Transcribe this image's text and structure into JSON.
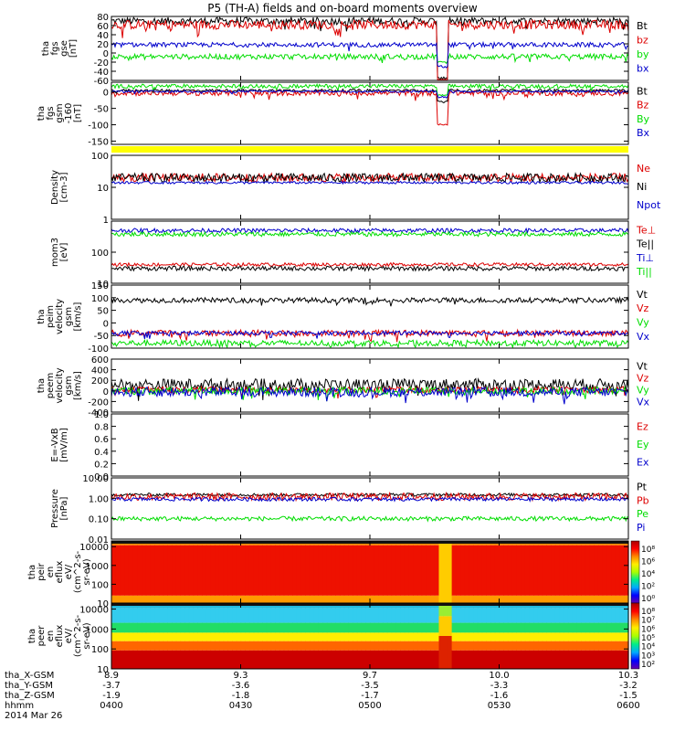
{
  "title": "P5 (TH-A) fields and on-board moments overview",
  "colors": {
    "black": "#000000",
    "red": "#dd0000",
    "blue": "#0000cc",
    "green": "#00dd00",
    "yellow": "#ffff00"
  },
  "chart_data": [
    {
      "type": "line",
      "panel": "fgs",
      "ylabel": [
        "tha",
        "fgs",
        "gse",
        "[nT]"
      ],
      "ylim": [
        -60,
        80
      ],
      "yticks": [
        "80",
        "60",
        "40",
        "20",
        "0",
        "-20",
        "-40",
        "-60"
      ],
      "ytick_values": [
        80,
        60,
        40,
        20,
        0,
        -20,
        -40,
        -60
      ],
      "series": [
        {
          "name": "Bt",
          "color": "#000000",
          "base": 70,
          "amp": 8,
          "dip": -55
        },
        {
          "name": "bz",
          "color": "#dd0000",
          "base": 62,
          "amp": 10,
          "dip": -80
        },
        {
          "name": "by",
          "color": "#00dd00",
          "base": -8,
          "amp": 6,
          "dip": -20
        },
        {
          "name": "bx",
          "color": "#0000cc",
          "base": 18,
          "amp": 5,
          "dip": -30
        }
      ]
    },
    {
      "type": "line",
      "panel": "fgs-gsm",
      "ylabel": [
        "tha",
        "fgs",
        "gsm",
        "-160",
        "[nT]"
      ],
      "ylim": [
        -160,
        30
      ],
      "yticks": [
        "0",
        "-50",
        "-100",
        "-150"
      ],
      "ytick_values": [
        0,
        -50,
        -100,
        -150
      ],
      "series": [
        {
          "name": "Bt",
          "color": "#000000",
          "base": 5,
          "amp": 4,
          "dip": -30
        },
        {
          "name": "Bz",
          "color": "#dd0000",
          "base": -3,
          "amp": 8,
          "dip": -100
        },
        {
          "name": "By",
          "color": "#00dd00",
          "base": 18,
          "amp": 6,
          "dip": -10
        },
        {
          "name": "Bx",
          "color": "#0000cc",
          "base": 2,
          "amp": 3,
          "dip": -15
        }
      ]
    },
    {
      "type": "line",
      "panel": "density",
      "ylabel": [
        "Density",
        "[cm-3]"
      ],
      "scale": "log",
      "ylim": [
        1,
        100
      ],
      "yticks": [
        "100",
        "10",
        "1"
      ],
      "ytick_values": [
        100,
        10,
        1
      ],
      "series": [
        {
          "name": "Ne",
          "color": "#dd0000",
          "base": 20,
          "amp": 5
        },
        {
          "name": "Ni",
          "color": "#000000",
          "base": 20,
          "amp": 5
        },
        {
          "name": "Npot",
          "color": "#0000cc",
          "base": 14,
          "amp": 1
        }
      ]
    },
    {
      "type": "line",
      "panel": "temperature",
      "ylabel": [
        "mom3",
        "[eV]"
      ],
      "scale": "log",
      "ylim": [
        10,
        1000
      ],
      "yticks": [
        "100",
        "10"
      ],
      "ytick_values": [
        100,
        10
      ],
      "series": [
        {
          "name": "Te⊥",
          "color": "#dd0000",
          "base": 40,
          "amp": 4
        },
        {
          "name": "Te||",
          "color": "#000000",
          "base": 30,
          "amp": 4
        },
        {
          "name": "Ti⊥",
          "color": "#0000cc",
          "base": 500,
          "amp": 60
        },
        {
          "name": "Ti||",
          "color": "#00dd00",
          "base": 380,
          "amp": 50
        }
      ]
    },
    {
      "type": "line",
      "panel": "peim-velocity",
      "ylabel": [
        "tha",
        "peim",
        "velocity",
        "gsm",
        "[km/s]"
      ],
      "ylim": [
        -100,
        150
      ],
      "yticks": [
        "150",
        "100",
        "50",
        "0",
        "-50",
        "-100"
      ],
      "ytick_values": [
        150,
        100,
        50,
        0,
        -50,
        -100
      ],
      "series": [
        {
          "name": "Vt",
          "color": "#000000",
          "base": 90,
          "amp": 10
        },
        {
          "name": "Vz",
          "color": "#dd0000",
          "base": -40,
          "amp": 12
        },
        {
          "name": "Vy",
          "color": "#00dd00",
          "base": -80,
          "amp": 12
        },
        {
          "name": "Vx",
          "color": "#0000cc",
          "base": -40,
          "amp": 8
        }
      ]
    },
    {
      "type": "line",
      "panel": "peem-velocity",
      "ylabel": [
        "tha",
        "peem",
        "velocity",
        "gsm",
        "[km/s]"
      ],
      "ylim": [
        -400,
        600
      ],
      "yticks": [
        "600",
        "400",
        "200",
        "0",
        "-200",
        "-400"
      ],
      "ytick_values": [
        600,
        400,
        200,
        0,
        -200,
        -400
      ],
      "series": [
        {
          "name": "Vt",
          "color": "#000000",
          "base": 120,
          "amp": 110
        },
        {
          "name": "Vz",
          "color": "#dd0000",
          "base": 20,
          "amp": 60
        },
        {
          "name": "Vy",
          "color": "#00dd00",
          "base": 0,
          "amp": 70
        },
        {
          "name": "Vx",
          "color": "#0000cc",
          "base": -20,
          "amp": 90
        }
      ]
    },
    {
      "type": "line",
      "panel": "efield",
      "ylabel": [
        "E=-VxB",
        "[mV/m]"
      ],
      "ylim": [
        0,
        1
      ],
      "yticks": [
        "1.0",
        "0.8",
        "0.6",
        "0.4",
        "0.2",
        "0.0"
      ],
      "ytick_values": [
        1,
        0.8,
        0.6,
        0.4,
        0.2,
        0
      ],
      "series": [
        {
          "name": "Ez",
          "color": "#dd0000"
        },
        {
          "name": "Ey",
          "color": "#00dd00"
        },
        {
          "name": "Ex",
          "color": "#0000cc"
        }
      ]
    },
    {
      "type": "line",
      "panel": "pressure",
      "ylabel": [
        "Pressure",
        "[nPa]"
      ],
      "scale": "log",
      "ylim": [
        0.01,
        10
      ],
      "yticks": [
        "10.00",
        "1.00",
        "0.10",
        "0.01"
      ],
      "ytick_values": [
        10,
        1,
        0.1,
        0.01
      ],
      "series": [
        {
          "name": "Pt",
          "color": "#000000",
          "base": 1.5,
          "amp": 0.2
        },
        {
          "name": "Pb",
          "color": "#dd0000",
          "base": 1.2,
          "amp": 0.4
        },
        {
          "name": "Pe",
          "color": "#00dd00",
          "base": 0.1,
          "amp": 0.02
        },
        {
          "name": "Pi",
          "color": "#0000cc",
          "base": 0.9,
          "amp": 0.15
        }
      ]
    },
    {
      "type": "heatmap",
      "panel": "peir-eflux",
      "ylabel": [
        "tha",
        "peir",
        "en",
        "eflux",
        "eV/",
        "(cm^2-s-",
        "sr-eV)"
      ],
      "scale": "log",
      "ylim": [
        10,
        20000
      ],
      "yticks": [
        "10000",
        "1000",
        "100",
        "10"
      ],
      "ytick_values": [
        10000,
        1000,
        100,
        10
      ],
      "colorbar_ticks": [
        "10⁸",
        "10⁶",
        "10⁴",
        "10²",
        "10⁰"
      ]
    },
    {
      "type": "heatmap",
      "panel": "peer-eflux",
      "ylabel": [
        "tha",
        "peer",
        "en",
        "eflux",
        "eV/",
        "(cm^2-s-",
        "sr-eV)"
      ],
      "scale": "log",
      "ylim": [
        10,
        20000
      ],
      "yticks": [
        "10000",
        "1000",
        "100",
        "10"
      ],
      "ytick_values": [
        10000,
        1000,
        100,
        10
      ],
      "colorbar_ticks": [
        "10⁸",
        "10⁷",
        "10⁶",
        "10⁵",
        "10⁴",
        "10³",
        "10²"
      ]
    }
  ],
  "xaxis": {
    "ephemeris_labels": [
      "tha_X-GSM",
      "tha_Y-GSM",
      "tha_Z-GSM",
      "hhmm",
      "2014 Mar 26"
    ],
    "columns": [
      {
        "x": "8.9",
        "y": "-3.7",
        "z": "-1.9",
        "t": "0400"
      },
      {
        "x": "9.3",
        "y": "-3.6",
        "z": "-1.8",
        "t": "0430"
      },
      {
        "x": "9.7",
        "y": "-3.5",
        "z": "-1.7",
        "t": "0500"
      },
      {
        "x": "10.0",
        "y": "-3.3",
        "z": "-1.6",
        "t": "0530"
      },
      {
        "x": "10.3",
        "y": "-3.2",
        "z": "-1.5",
        "t": "0600"
      }
    ]
  }
}
